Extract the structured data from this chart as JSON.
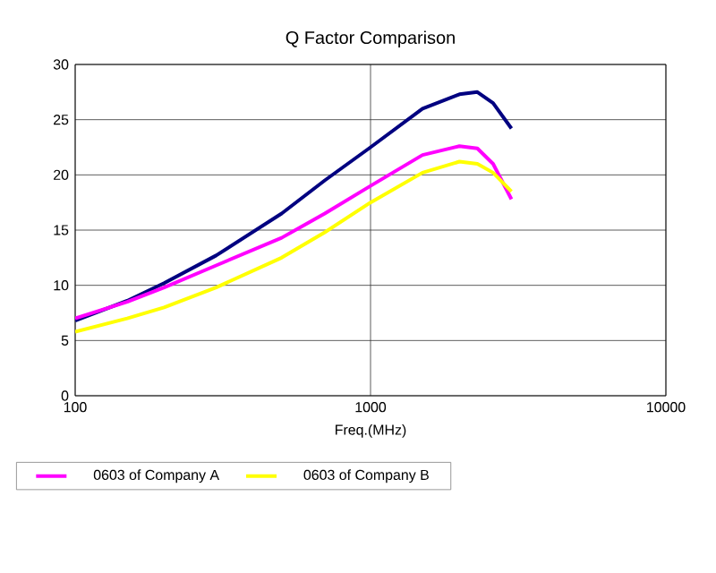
{
  "chart_data": {
    "type": "line",
    "title": "Q Factor Comparison",
    "xlabel": "Freq.(MHz)",
    "log": "x",
    "grid": true,
    "legend": "bottom",
    "marker": "none",
    "line_style": "solid",
    "xlim": [
      100,
      10000
    ],
    "xticks": [
      100,
      1000,
      10000
    ],
    "ylim": [
      0,
      30
    ],
    "yticks": [
      0,
      5,
      10,
      15,
      20,
      25,
      30
    ],
    "x": [
      100,
      150,
      200,
      300,
      500,
      700,
      1000,
      1500,
      2000,
      2300,
      2600,
      3000
    ],
    "series": [
      {
        "color": "#000080",
        "values": [
          6.8,
          8.6,
          10.2,
          12.7,
          16.5,
          19.5,
          22.5,
          26,
          27.3,
          27.5,
          26.5,
          24.2
        ]
      },
      {
        "name": "0603 of Company A",
        "color": "#ff00ff",
        "values": [
          7,
          8.5,
          9.8,
          11.8,
          14.3,
          16.5,
          19,
          21.8,
          22.6,
          22.4,
          21,
          17.8
        ]
      },
      {
        "name": "0603 of Company B",
        "color": "#ffff00",
        "values": [
          5.8,
          7,
          8,
          9.8,
          12.5,
          14.8,
          17.5,
          20.2,
          21.2,
          21,
          20.2,
          18.5
        ]
      }
    ]
  }
}
